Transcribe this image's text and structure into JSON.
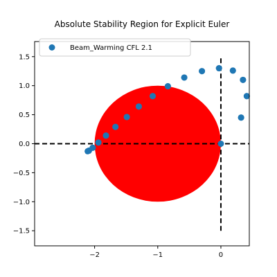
{
  "chart_data": {
    "type": "scatter",
    "title": "Absolute Stability Region for Explicit Euler",
    "xlabel": "",
    "ylabel": "",
    "xlim": [
      -2.95,
      0.45
    ],
    "ylim": [
      -1.76,
      1.76
    ],
    "xticks": [
      -2,
      -1,
      0
    ],
    "yticks": [
      -1.5,
      -1.0,
      -0.5,
      0.0,
      0.5,
      1.0,
      1.5
    ],
    "grid": false,
    "legend": {
      "placement": "top-left",
      "entries": [
        "Beam_Warming CFL 2.1"
      ]
    },
    "colors": {
      "points": "#1f77b4",
      "region": "#ff0000",
      "reference_lines": "#000000"
    },
    "stability_region": {
      "shape": "disk",
      "center": [
        -1.0,
        0.0
      ],
      "radius": 1.0
    },
    "reference_lines": [
      {
        "orientation": "horizontal",
        "y": 0.0,
        "x_from": -2.95,
        "x_to": 0.45
      },
      {
        "orientation": "vertical",
        "x": 0.0,
        "y_from": -1.5,
        "y_to": 1.5
      }
    ],
    "series": [
      {
        "name": "Beam_Warming CFL 2.1",
        "x": [
          0.0,
          0.32,
          0.41,
          0.35,
          0.19,
          -0.03,
          -0.3,
          -0.58,
          -0.84,
          -1.08,
          -1.3,
          -1.49,
          -1.67,
          -1.82,
          -1.94,
          -2.03,
          -2.09,
          -2.11,
          -2.09,
          -2.03,
          -1.94,
          -1.82,
          -1.67,
          -1.49,
          -1.3,
          -1.08,
          -0.84,
          -0.58,
          -0.3,
          -0.03,
          0.19,
          0.35,
          0.41,
          0.32
        ],
        "y": [
          0.0,
          0.45,
          0.82,
          1.1,
          1.26,
          1.3,
          1.25,
          1.14,
          0.99,
          0.82,
          0.64,
          0.46,
          0.29,
          0.14,
          0.02,
          -0.07,
          -0.12,
          -0.13,
          -0.12,
          -0.07,
          0.02,
          0.14,
          0.29,
          0.46,
          0.64,
          0.82,
          0.99,
          1.14,
          1.25,
          1.3,
          1.26,
          1.1,
          0.82,
          0.45
        ]
      }
    ]
  }
}
